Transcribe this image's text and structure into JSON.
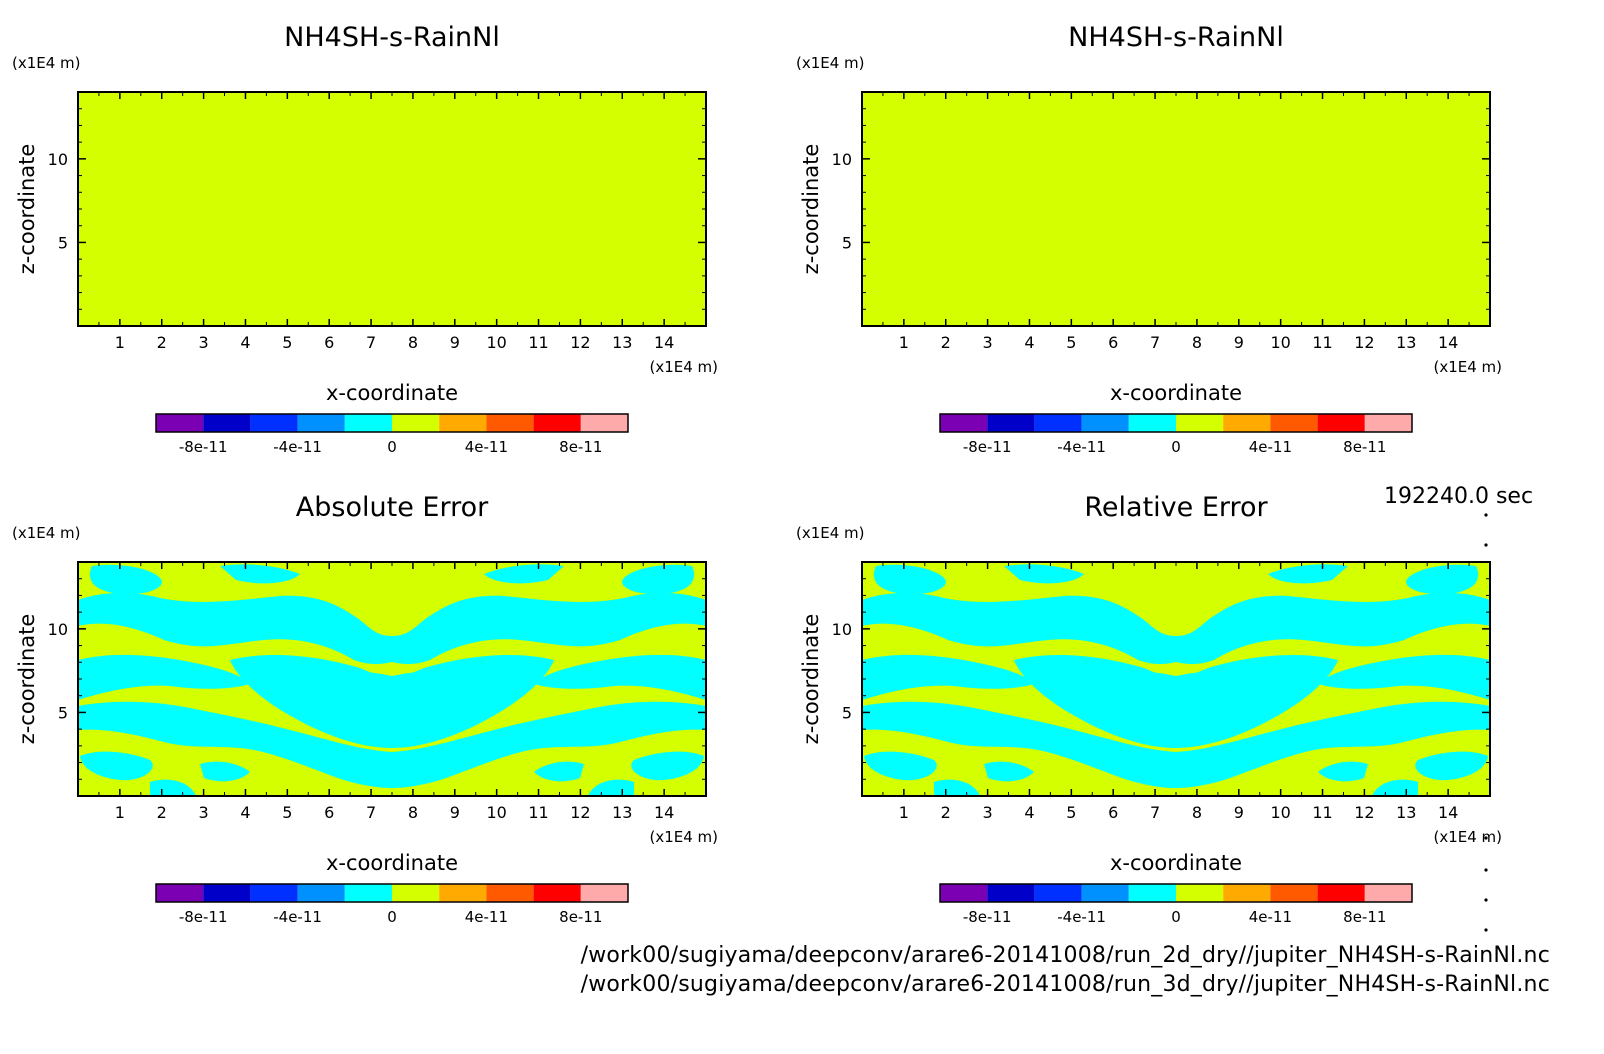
{
  "timestamp": "192240.0 sec",
  "footer": {
    "line1": "/work00/sugiyama/deepconv/arare6-20141008/run_2d_dry//jupiter_NH4SH-s-RainNl.nc",
    "line2": "/work00/sugiyama/deepconv/arare6-20141008/run_3d_dry//jupiter_NH4SH-s-RainNl.nc"
  },
  "colors": {
    "bands": [
      "#7b00b4",
      "#0000c8",
      "#0030ff",
      "#0091ff",
      "#00ffff",
      "#d4ff00",
      "#ffaa00",
      "#ff5a00",
      "#ff0000",
      "#ffaaaa"
    ],
    "frame": "#000000"
  },
  "chart_data": [
    {
      "type": "heatmap",
      "title": "NH4SH-s-RainNl",
      "xlabel": "x-coordinate",
      "ylabel": "z-coordinate",
      "x_unit": "(x1E4 m)",
      "y_unit": "(x1E4 m)",
      "x_ticks": [
        "1",
        "2",
        "3",
        "4",
        "5",
        "6",
        "7",
        "8",
        "9",
        "10",
        "11",
        "12",
        "13",
        "14"
      ],
      "y_ticks": [
        "5",
        "10"
      ],
      "xlim": [
        0,
        15
      ],
      "ylim": [
        0,
        14
      ],
      "field": "uniform",
      "field_value": 0,
      "colorbar": {
        "levels": [
          -1e-10,
          -8e-11,
          -6e-11,
          -4e-11,
          -2e-11,
          0,
          2e-11,
          4e-11,
          6e-11,
          8e-11,
          1e-10
        ],
        "tick_labels": [
          "-8e-11",
          "-4e-11",
          "0",
          "4e-11",
          "8e-11"
        ]
      }
    },
    {
      "type": "heatmap",
      "title": "NH4SH-s-RainNl",
      "xlabel": "x-coordinate",
      "ylabel": "z-coordinate",
      "x_unit": "(x1E4 m)",
      "y_unit": "(x1E4 m)",
      "x_ticks": [
        "1",
        "2",
        "3",
        "4",
        "5",
        "6",
        "7",
        "8",
        "9",
        "10",
        "11",
        "12",
        "13",
        "14"
      ],
      "y_ticks": [
        "5",
        "10"
      ],
      "xlim": [
        0,
        15
      ],
      "ylim": [
        0,
        14
      ],
      "field": "uniform",
      "field_value": 0,
      "colorbar": {
        "levels": [
          -1e-10,
          -8e-11,
          -6e-11,
          -4e-11,
          -2e-11,
          0,
          2e-11,
          4e-11,
          6e-11,
          8e-11,
          1e-10
        ],
        "tick_labels": [
          "-8e-11",
          "-4e-11",
          "0",
          "4e-11",
          "8e-11"
        ]
      }
    },
    {
      "type": "heatmap",
      "title": "Absolute Error",
      "xlabel": "x-coordinate",
      "ylabel": "z-coordinate",
      "x_unit": "(x1E4 m)",
      "y_unit": "(x1E4 m)",
      "x_ticks": [
        "1",
        "2",
        "3",
        "4",
        "5",
        "6",
        "7",
        "8",
        "9",
        "10",
        "11",
        "12",
        "13",
        "14"
      ],
      "y_ticks": [
        "5",
        "10"
      ],
      "xlim": [
        0,
        15
      ],
      "ylim": [
        0,
        14
      ],
      "field": "mixed band between 0 and -2e-11, symmetric about x=7.5",
      "field_value": 0,
      "colorbar": {
        "levels": [
          -1e-10,
          -8e-11,
          -6e-11,
          -4e-11,
          -2e-11,
          0,
          2e-11,
          4e-11,
          6e-11,
          8e-11,
          1e-10
        ],
        "tick_labels": [
          "-8e-11",
          "-4e-11",
          "0",
          "4e-11",
          "8e-11"
        ]
      }
    },
    {
      "type": "heatmap",
      "title": "Relative Error",
      "xlabel": "x-coordinate",
      "ylabel": "z-coordinate",
      "x_unit": "(x1E4 m)",
      "y_unit": "(x1E4 m)",
      "x_ticks": [
        "1",
        "2",
        "3",
        "4",
        "5",
        "6",
        "7",
        "8",
        "9",
        "10",
        "11",
        "12",
        "13",
        "14"
      ],
      "y_ticks": [
        "5",
        "10"
      ],
      "xlim": [
        0,
        15
      ],
      "ylim": [
        0,
        14
      ],
      "field": "mixed band between 0 and -2e-11, symmetric about x=7.5",
      "field_value": 0,
      "colorbar": {
        "levels": [
          -1e-10,
          -8e-11,
          -6e-11,
          -4e-11,
          -2e-11,
          0,
          2e-11,
          4e-11,
          6e-11,
          8e-11,
          1e-10
        ],
        "tick_labels": [
          "-8e-11",
          "-4e-11",
          "0",
          "4e-11",
          "8e-11"
        ]
      }
    }
  ]
}
